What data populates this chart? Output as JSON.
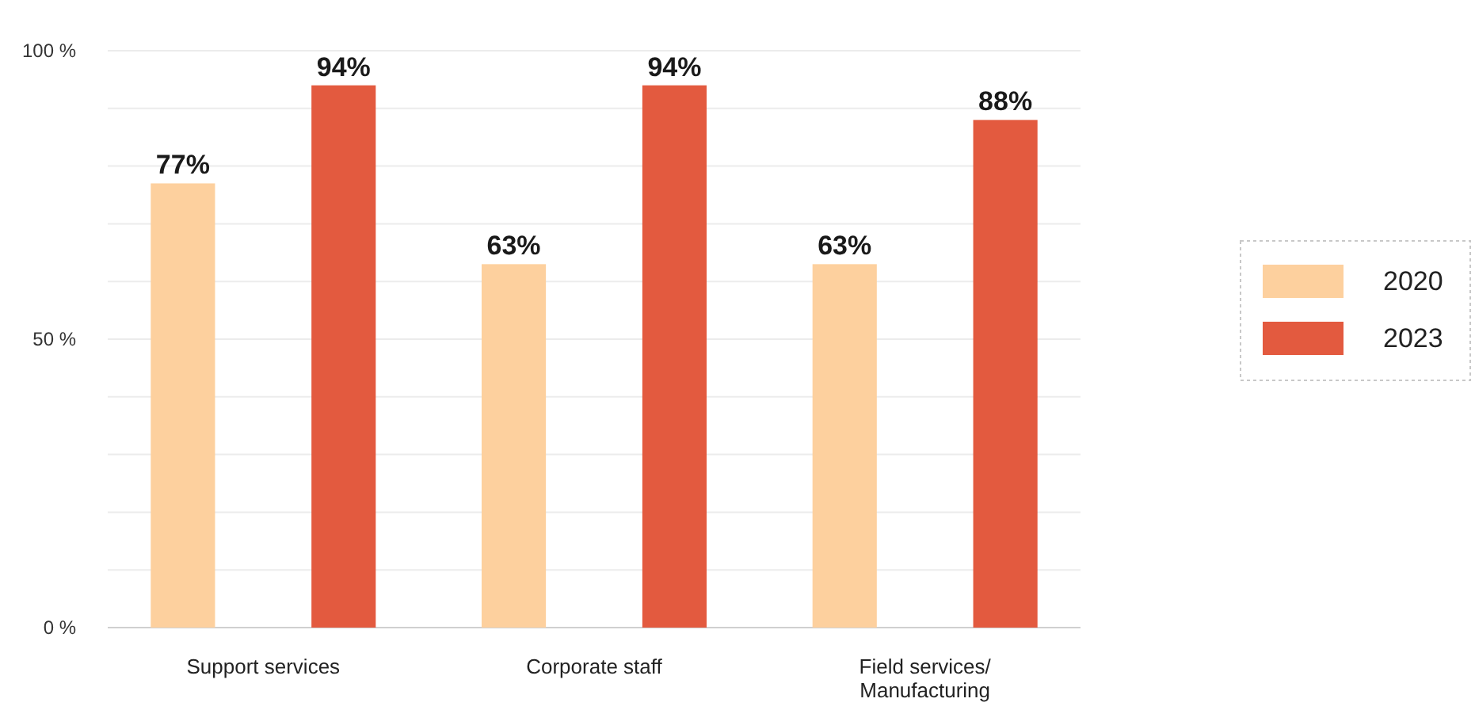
{
  "chart_data": {
    "type": "bar",
    "categories": [
      "Support services",
      "Corporate staff",
      "Field services/ Manufacturing"
    ],
    "series": [
      {
        "name": "2020",
        "color": "#fdd09e",
        "values": [
          77,
          63,
          63
        ],
        "value_labels": [
          "77%",
          "63%",
          "63%"
        ]
      },
      {
        "name": "2023",
        "color": "#e35a3f",
        "values": [
          94,
          94,
          88
        ],
        "value_labels": [
          "94%",
          "94%",
          "88%"
        ]
      }
    ],
    "ylim": [
      0,
      100
    ],
    "yticks": [
      {
        "value": 0,
        "label": "0 %"
      },
      {
        "value": 10,
        "label": null
      },
      {
        "value": 20,
        "label": null
      },
      {
        "value": 30,
        "label": null
      },
      {
        "value": 40,
        "label": null
      },
      {
        "value": 50,
        "label": "50 %"
      },
      {
        "value": 60,
        "label": null
      },
      {
        "value": 70,
        "label": null
      },
      {
        "value": 80,
        "label": null
      },
      {
        "value": 90,
        "label": null
      },
      {
        "value": 100,
        "label": "100 %"
      }
    ],
    "grid": "y",
    "legend": "right"
  }
}
